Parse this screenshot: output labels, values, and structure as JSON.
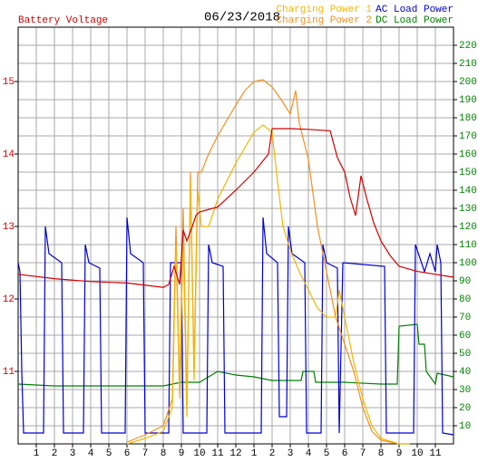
{
  "chart_data": {
    "type": "line",
    "title": "06/23/2018",
    "xlim": [
      0,
      24
    ],
    "xticks": [
      1,
      2,
      3,
      4,
      5,
      6,
      7,
      8,
      9,
      10,
      11,
      12,
      {
        "value": 13,
        "label": "1"
      },
      {
        "value": 14,
        "label": "2"
      },
      {
        "value": 15,
        "label": "3"
      },
      {
        "value": 16,
        "label": "4"
      },
      {
        "value": 17,
        "label": "5"
      },
      {
        "value": 18,
        "label": "6"
      },
      {
        "value": 19,
        "label": "7"
      },
      {
        "value": 20,
        "label": "8"
      },
      {
        "value": 21,
        "label": "9"
      },
      {
        "value": 22,
        "label": "10"
      },
      {
        "value": 23,
        "label": "11"
      }
    ],
    "ylim": [
      10,
      15.75
    ],
    "yticks": [
      11,
      12,
      13,
      14,
      15
    ],
    "y2lim": [
      0,
      230
    ],
    "y2ticks": [
      10,
      20,
      30,
      40,
      50,
      60,
      70,
      80,
      90,
      100,
      110,
      120,
      130,
      140,
      150,
      160,
      170,
      180,
      190,
      200,
      210,
      220
    ],
    "grid": true,
    "series": [
      {
        "name": "Battery Voltage",
        "color": "#d00000",
        "axis": "y",
        "x": [
          0,
          2,
          4,
          6,
          8,
          8.3,
          8.6,
          8.9,
          9.1,
          9.3,
          9.6,
          9.8,
          10,
          11,
          12,
          13,
          13.8,
          14,
          15,
          16,
          17.2,
          17.6,
          18,
          18.3,
          18.6,
          18.9,
          19.2,
          19.6,
          20,
          20.5,
          21,
          22,
          23,
          24
        ],
        "values": [
          12.34,
          12.28,
          12.24,
          12.22,
          12.16,
          12.2,
          12.45,
          12.2,
          12.95,
          12.8,
          13.0,
          13.15,
          13.2,
          13.27,
          13.5,
          13.75,
          14.0,
          14.35,
          14.35,
          14.34,
          14.32,
          13.95,
          13.75,
          13.4,
          13.15,
          13.7,
          13.4,
          13.05,
          12.8,
          12.6,
          12.45,
          12.38,
          12.34,
          12.3
        ]
      },
      {
        "name": "Charging Power 1",
        "color": "#f0b800",
        "axis": "y2",
        "x": [
          6,
          7,
          8,
          8.5,
          8.7,
          8.9,
          9.1,
          9.3,
          9.5,
          9.7,
          9.9,
          10.1,
          10.5,
          11,
          12,
          13,
          13.5,
          14,
          14.3,
          14.6,
          15,
          15.5,
          16,
          16.5,
          17,
          17.5,
          17.7,
          18,
          18.5,
          19,
          19.5,
          20,
          21,
          21.6
        ],
        "values": [
          0,
          3,
          7,
          20,
          110,
          25,
          115,
          15,
          145,
          35,
          140,
          120,
          120,
          135,
          155,
          172,
          176,
          172,
          145,
          120,
          107,
          95,
          85,
          75,
          70,
          70,
          85,
          70,
          45,
          25,
          10,
          3,
          0,
          0
        ]
      },
      {
        "name": "Charging Power 2",
        "color": "#f09020",
        "axis": "y2",
        "x": [
          6,
          7,
          8,
          8.5,
          8.7,
          8.9,
          9.1,
          9.3,
          9.5,
          9.7,
          9.9,
          10.1,
          10.5,
          11,
          12,
          12.5,
          13,
          13.5,
          14,
          14.5,
          15,
          15.3,
          15.5,
          16,
          16.5,
          17,
          17.5,
          18,
          18.5,
          19,
          19.5,
          20,
          21,
          21.6
        ],
        "values": [
          1,
          5,
          10,
          25,
          120,
          30,
          130,
          20,
          150,
          40,
          150,
          150,
          160,
          170,
          187,
          195,
          200,
          201,
          197,
          190,
          182,
          195,
          177,
          157,
          120,
          95,
          70,
          55,
          40,
          20,
          7,
          2,
          0,
          0
        ]
      },
      {
        "name": "AC Load Power",
        "color": "#0000d0",
        "axis": "y2",
        "x": [
          0,
          0.1,
          0.2,
          0.3,
          1.4,
          1.5,
          1.7,
          2.4,
          2.5,
          3.6,
          3.7,
          3.9,
          4.5,
          4.6,
          5.9,
          6.0,
          6.2,
          6.9,
          7.0,
          8.3,
          8.4,
          9.0,
          9.1,
          10.4,
          10.5,
          10.7,
          11.3,
          11.4,
          13.4,
          13.5,
          13.7,
          14.3,
          14.4,
          14.8,
          14.9,
          15.1,
          15.8,
          15.9,
          16.7,
          16.8,
          17.0,
          17.6,
          17.7,
          17.9,
          20.2,
          20.3,
          21.8,
          21.9,
          22.4,
          22.7,
          23.0,
          23.1,
          23.3,
          23.4,
          24
        ],
        "values": [
          100,
          95,
          40,
          6,
          6,
          120,
          105,
          100,
          6,
          6,
          110,
          100,
          97,
          6,
          6,
          125,
          105,
          100,
          6,
          6,
          100,
          100,
          6,
          6,
          110,
          100,
          98,
          6,
          6,
          125,
          105,
          100,
          15,
          15,
          120,
          105,
          100,
          6,
          6,
          110,
          100,
          97,
          6,
          100,
          98,
          6,
          6,
          110,
          95,
          105,
          95,
          110,
          100,
          6,
          5
        ]
      },
      {
        "name": "DC Load Power",
        "color": "#008000",
        "axis": "y2",
        "x": [
          0,
          2,
          4,
          6,
          8,
          9,
          10,
          11,
          12,
          13,
          14,
          15,
          15.6,
          15.7,
          16.3,
          16.4,
          18,
          20,
          20.9,
          21.0,
          22.0,
          22.1,
          22.4,
          22.5,
          23.0,
          23.1,
          24
        ],
        "values": [
          33,
          32,
          32,
          32,
          32,
          34,
          34,
          40,
          38,
          37,
          35,
          35,
          35,
          40,
          40,
          34,
          34,
          33,
          33,
          65,
          66,
          55,
          55,
          40,
          33,
          39,
          37
        ]
      }
    ]
  }
}
